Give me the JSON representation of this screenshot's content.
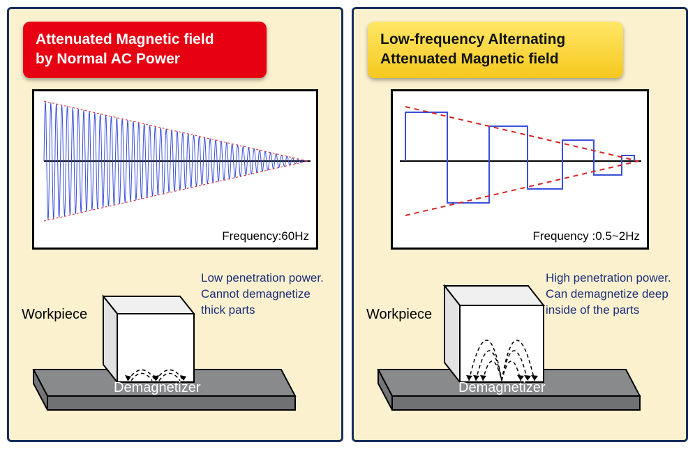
{
  "panels": {
    "left": {
      "title_line1": "Attenuated Magnetic field",
      "title_line2": "by Normal AC Power",
      "freq_label": "Frequency:60Hz",
      "workpiece_label": "Workpiece",
      "demag_label": "Demagnetizer",
      "penetration_line1": "Low penetration power.",
      "penetration_line2": "Cannot demagnetize",
      "penetration_line3": "thick parts",
      "chart": {
        "type": "attenuated-sine",
        "cycles": 48,
        "stroke": "#3a4fd9",
        "envelope_stroke": "#d62222",
        "envelope_dash": "3,3",
        "axis_color": "#000",
        "bg": "#ffffff"
      }
    },
    "right": {
      "title_line1": "Low-frequency Alternating",
      "title_line2": "Attenuated Magnetic field",
      "freq_label": "Frequency :0.5~2Hz",
      "workpiece_label": "Workpiece",
      "demag_label": "Demagnetizer",
      "penetration_line1": "High penetration power.",
      "penetration_line2": "Can demagnetize deep",
      "penetration_line3": "inside of the parts",
      "chart": {
        "type": "attenuated-square",
        "step_widths": [
          60,
          60,
          55,
          50,
          45,
          40,
          18
        ],
        "step_heights": [
          70,
          -60,
          50,
          -40,
          30,
          -20,
          8
        ],
        "stroke": "#3a4fd9",
        "stroke_width": 2,
        "envelope_stroke": "#d62222",
        "envelope_dash": "7,6",
        "envelope_width": 2,
        "axis_color": "#000",
        "bg": "#ffffff"
      }
    }
  },
  "diagram": {
    "platform_fill": "#888a8c",
    "platform_stroke": "#000",
    "cube_fill": "#ffffff",
    "cube_stroke": "#000",
    "field_stroke": "#000",
    "field_dash": "5,4"
  },
  "colors": {
    "panel_bg": "#fcf1cf",
    "panel_border": "#1a2e5c",
    "title_red": "#e60012",
    "title_yellow_top": "#ffe766",
    "title_yellow_bot": "#f6c81f",
    "text_blue": "#1a2e7a"
  }
}
